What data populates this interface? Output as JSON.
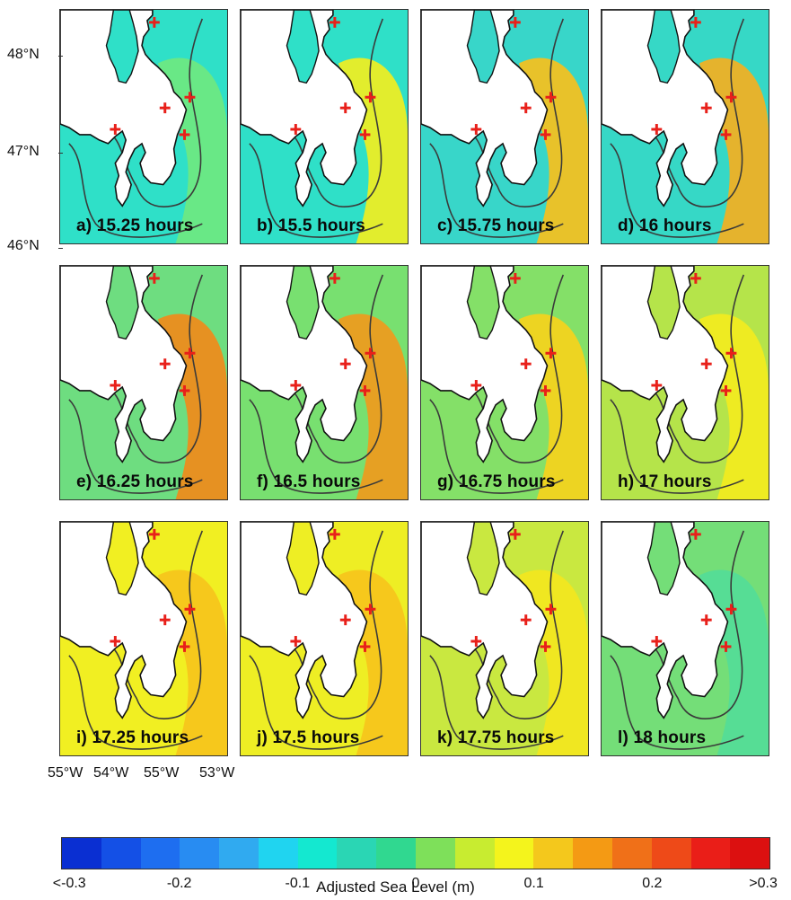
{
  "figure": {
    "lat_labels": [
      "48°N",
      "47°N",
      "46°N"
    ],
    "lon_labels": [
      "55°W",
      "54°W",
      "55°W",
      "53°W"
    ],
    "panels": [
      {
        "label": "a) 15.25 hours",
        "sea_color": "#2fe0c8",
        "offshore_color": "#6fe880"
      },
      {
        "label": "b) 15.5 hours",
        "sea_color": "#2fe0c8",
        "offshore_color": "#f2ee20"
      },
      {
        "label": "c) 15.75 hours",
        "sea_color": "#38d6c9",
        "offshore_color": "#f7c01c"
      },
      {
        "label": "d) 16 hours",
        "sea_color": "#36d8c6",
        "offshore_color": "#f4b020"
      },
      {
        "label": "e) 16.25 hours",
        "sea_color": "#6edd80",
        "offshore_color": "#f08a1a"
      },
      {
        "label": "f) 16.5 hours",
        "sea_color": "#78e070",
        "offshore_color": "#f09a1c"
      },
      {
        "label": "g) 16.75 hours",
        "sea_color": "#84e068",
        "offshore_color": "#f6d21c"
      },
      {
        "label": "h) 17 hours",
        "sea_color": "#b5e44a",
        "offshore_color": "#f3ec1e"
      },
      {
        "label": "i) 17.25 hours",
        "sea_color": "#f1ef22",
        "offshore_color": "#f6c41c"
      },
      {
        "label": "j) 17.5 hours",
        "sea_color": "#eeee24",
        "offshore_color": "#f6c41c"
      },
      {
        "label": "k) 17.75 hours",
        "sea_color": "#c9e840",
        "offshore_color": "#f3e61e"
      },
      {
        "label": "l) 18 hours",
        "sea_color": "#74de78",
        "offshore_color": "#54dc98"
      }
    ],
    "marker_color": "#e8201a"
  },
  "colorbar": {
    "title": "Adjusted Sea Level (m)",
    "tick_labels": [
      "<-0.3",
      "-0.2",
      "-0.1",
      "0",
      "0.1",
      "0.2",
      ">0.3"
    ],
    "colors": [
      "#0a2fd2",
      "#1450e6",
      "#1e6ef0",
      "#288cf2",
      "#30aaf0",
      "#20d4f0",
      "#14e8d0",
      "#2ad6b4",
      "#30d890",
      "#7ee05a",
      "#c8ec30",
      "#f4f41c",
      "#f4c81c",
      "#f49a14",
      "#f07018",
      "#ee4a18",
      "#ea1e18",
      "#dc1010"
    ]
  }
}
